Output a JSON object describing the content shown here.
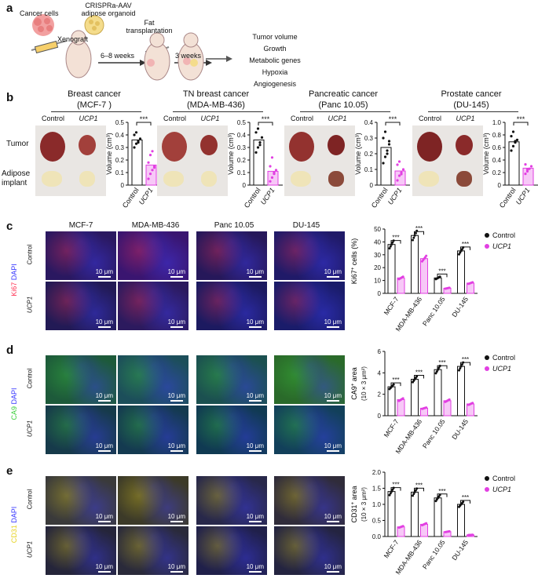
{
  "panels": {
    "a": "a",
    "b": "b",
    "c": "c",
    "d": "d",
    "e": "e"
  },
  "panel_a": {
    "cancer_cells": "Cancer cells",
    "organoid_line1": "CRISPRa-AAV",
    "organoid_line2": "adipose organoid",
    "xenograft": "Xenograft",
    "fat_line1": "Fat",
    "fat_line2": "transplantation",
    "weeks1": "6–8 weeks",
    "weeks2": "3 weeks",
    "outcomes": [
      "Tumor volume",
      "Growth",
      "Metabolic genes",
      "Hypoxia",
      "Angiogenesis"
    ]
  },
  "panel_b": {
    "row_tumor": "Tumor",
    "row_adipose1": "Adipose",
    "row_adipose2": "implant",
    "control": "Control",
    "ucp1": "UCP1",
    "ylabel": "Volume (cm³)",
    "sig": "***",
    "cancers": [
      {
        "name": "Breast cancer",
        "line": "(MCF-7 )",
        "ticks": [
          "0",
          "0.1",
          "0.2",
          "0.3",
          "0.4",
          "0.5"
        ],
        "max": 0.5,
        "bars": [
          0.36,
          0.16
        ],
        "ctrl_pts": [
          0.3,
          0.33,
          0.35,
          0.37,
          0.4,
          0.42,
          0.34
        ],
        "ucp_pts": [
          0.05,
          0.09,
          0.12,
          0.15,
          0.18,
          0.24,
          0.27,
          0.14
        ]
      },
      {
        "name": "TN breast cancer",
        "line": "(MDA-MB-436)",
        "ticks": [
          "0",
          "0.1",
          "0.2",
          "0.3",
          "0.4",
          "0.5"
        ],
        "max": 0.5,
        "bars": [
          0.36,
          0.11
        ],
        "ctrl_pts": [
          0.26,
          0.3,
          0.34,
          0.38,
          0.42,
          0.45,
          0.32
        ],
        "ucp_pts": [
          0.03,
          0.06,
          0.09,
          0.12,
          0.15,
          0.22,
          0.1
        ]
      },
      {
        "name": "Pancreatic cancer",
        "line": "(Panc 10.05)",
        "ticks": [
          "0",
          "0.1",
          "0.2",
          "0.3",
          "0.4"
        ],
        "max": 0.4,
        "bars": [
          0.24,
          0.09
        ],
        "ctrl_pts": [
          0.14,
          0.18,
          0.22,
          0.26,
          0.3,
          0.34,
          0.2,
          0.28
        ],
        "ucp_pts": [
          0.03,
          0.06,
          0.08,
          0.1,
          0.13,
          0.15,
          0.07
        ]
      },
      {
        "name": "Prostate cancer",
        "line": "(DU-145)",
        "ticks": [
          "0",
          "0.2",
          "0.4",
          "0.6",
          "0.8",
          "1.0"
        ],
        "max": 1.0,
        "bars": [
          0.69,
          0.27
        ],
        "ctrl_pts": [
          0.55,
          0.62,
          0.68,
          0.72,
          0.78,
          0.85,
          0.7
        ],
        "ucp_pts": [
          0.18,
          0.22,
          0.26,
          0.3,
          0.33,
          0.25
        ]
      }
    ]
  },
  "micro": {
    "columns": [
      "MCF-7",
      "MDA-MB-436",
      "Panc 10.05",
      "DU-145"
    ],
    "row_control": "Control",
    "row_ucp1": "UCP1",
    "scale": "10 μm",
    "dapi": "DAPI"
  },
  "panel_c": {
    "marker": "Ki67",
    "ylabel_main": "Ki67",
    "ylabel_sup": "+",
    "ylabel_rest": " cells (%)"
  },
  "panel_d": {
    "marker": "CA9",
    "ylabel_main": "CA9",
    "ylabel_sup": "+",
    "ylabel_rest": " area",
    "ylabel_line2": "(10 × 3 μm²)"
  },
  "panel_e": {
    "marker": "CD31",
    "ylabel_main": "CD31",
    "ylabel_sup": "+",
    "ylabel_rest": " area",
    "ylabel_line2": "(10 × 3 μm²)"
  },
  "legend": {
    "control": "Control",
    "ucp1": "UCP1"
  },
  "chart_data": [
    {
      "type": "bar",
      "panel": "c",
      "categories": [
        "MCF-7",
        "MDA-MB-436",
        "Panc 10.05",
        "DU-145"
      ],
      "series": [
        {
          "name": "Control",
          "values": [
            38,
            45,
            12,
            33
          ]
        },
        {
          "name": "UCP1",
          "values": [
            12,
            27,
            4,
            8
          ]
        }
      ],
      "ylim": [
        0,
        50
      ],
      "ticks": [
        0,
        10,
        20,
        30,
        40,
        50
      ],
      "sig": "***"
    },
    {
      "type": "bar",
      "panel": "d",
      "categories": [
        "MCF-7",
        "MDA-MB-436",
        "Panc 10.05",
        "DU-145"
      ],
      "series": [
        {
          "name": "Control",
          "values": [
            2.7,
            3.4,
            4.3,
            4.6
          ]
        },
        {
          "name": "UCP1",
          "values": [
            1.5,
            0.7,
            1.4,
            1.1
          ]
        }
      ],
      "ylim": [
        0,
        6
      ],
      "ticks": [
        0,
        2,
        4,
        6
      ],
      "sig": "***"
    },
    {
      "type": "bar",
      "panel": "e",
      "categories": [
        "MCF-7",
        "MDA-MB-436",
        "Panc 10.05",
        "DU-145"
      ],
      "series": [
        {
          "name": "Control",
          "values": [
            1.4,
            1.38,
            1.2,
            1.0
          ]
        },
        {
          "name": "UCP1",
          "values": [
            0.3,
            0.38,
            0.15,
            0.05
          ]
        }
      ],
      "ylim": [
        0,
        2.0
      ],
      "ticks": [
        0,
        0.5,
        1.0,
        1.5,
        2.0
      ],
      "sig": "***"
    }
  ],
  "colors": {
    "control": "#111111",
    "ucp1": "#e23fe2",
    "bar_ctrl": "#ffffff",
    "bar_ucp": "#f7c8f7",
    "pink": "#e23fe2",
    "ki67": "#ff3355",
    "ca9": "#3ecf3e",
    "cd31": "#e6d21e",
    "dapi": "#3a3aff"
  }
}
